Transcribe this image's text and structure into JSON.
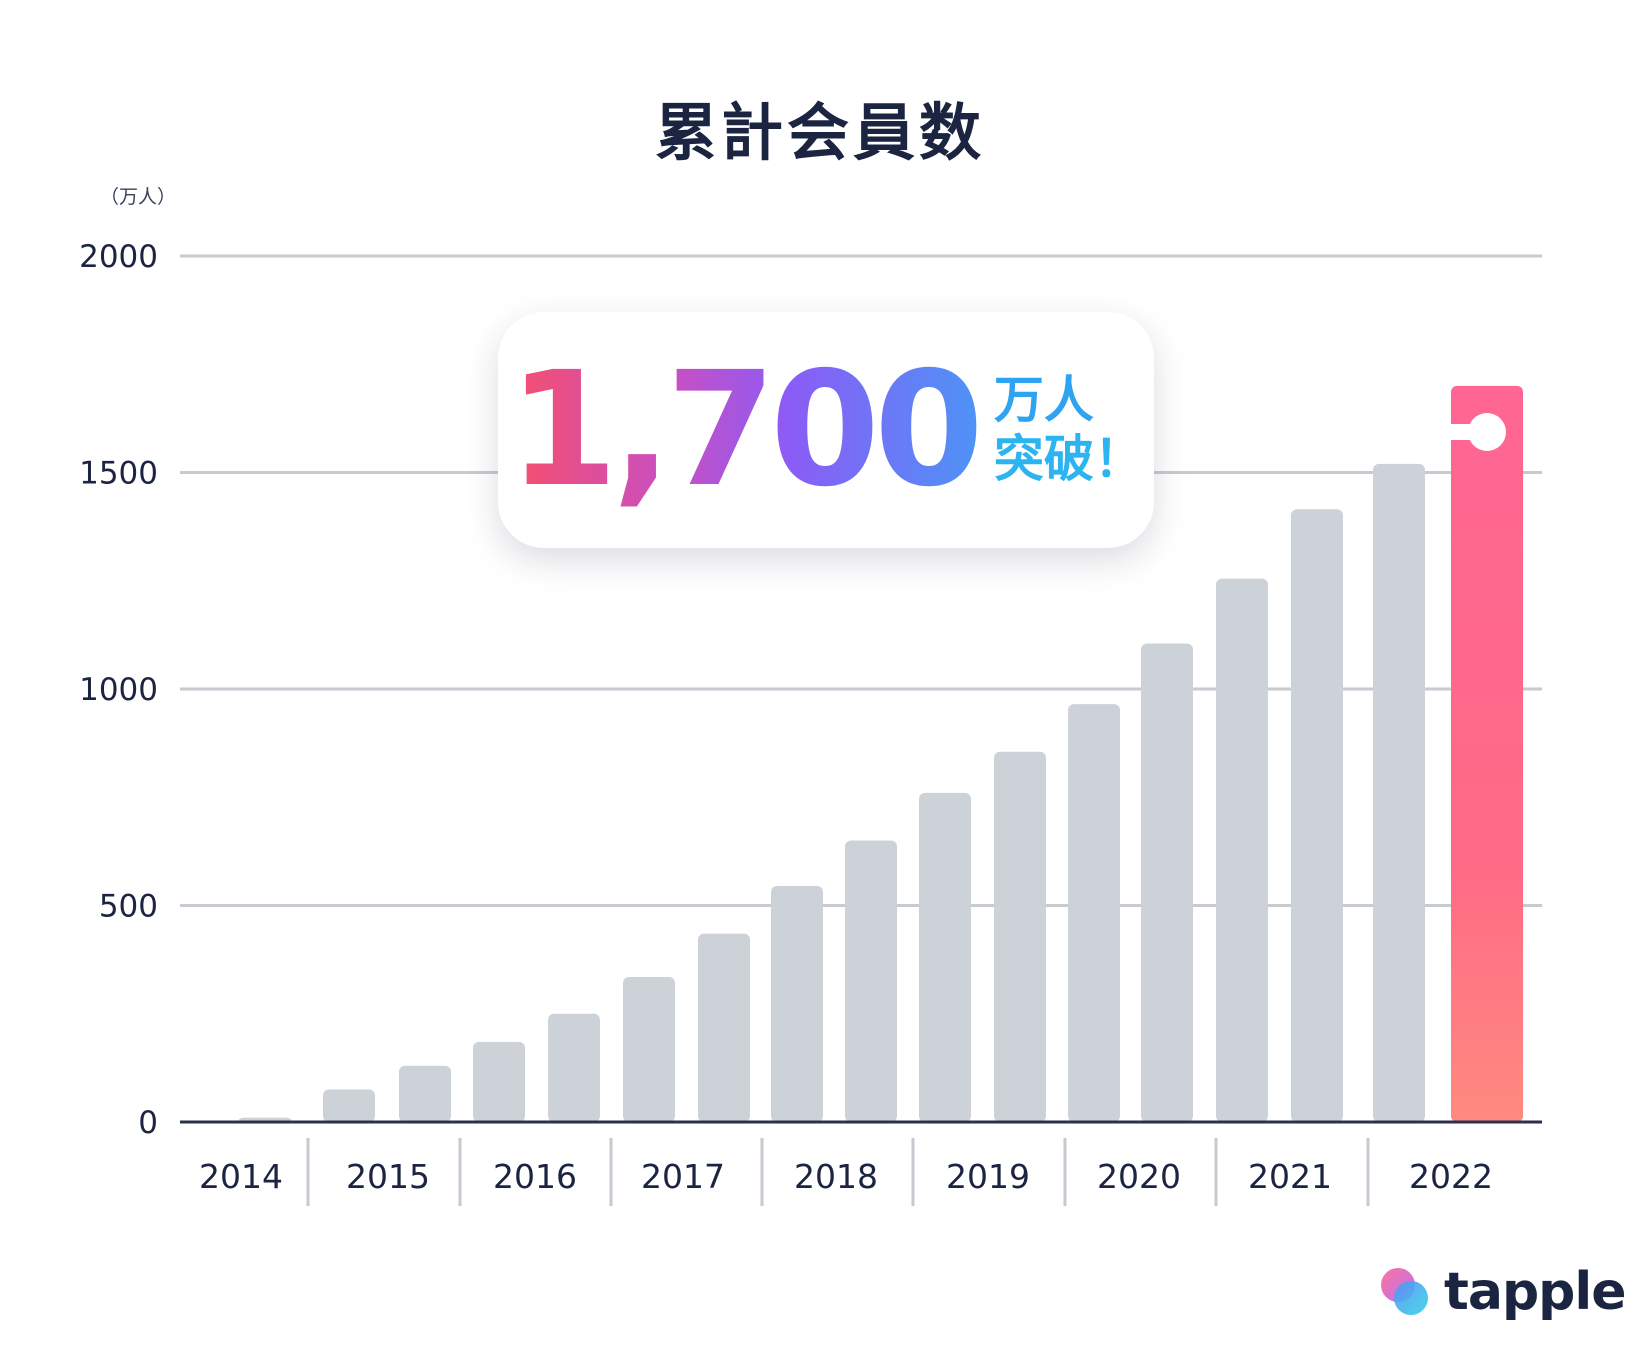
{
  "title": "累計会員数",
  "unit_label": "（万人）",
  "callout": {
    "number": "1,700",
    "line1": "万人",
    "line2": "突破！"
  },
  "brand": {
    "name": "tapple"
  },
  "colors": {
    "bar": "#cdd2d9",
    "highlight_bar_top": "#ff6693",
    "highlight_bar_bottom": "#ff8a7f",
    "grid": "#c7cad0",
    "axis": "#2a3148",
    "text": "#1b2440",
    "callout_accent": "#2ea3f2"
  },
  "chart_data": {
    "type": "bar",
    "title": "累計会員数",
    "ylabel": "（万人）",
    "ylim": [
      0,
      2000
    ],
    "yticks": [
      0,
      500,
      1000,
      1500,
      2000
    ],
    "year_labels": [
      "2014",
      "2015",
      "2016",
      "2017",
      "2018",
      "2019",
      "2020",
      "2021",
      "2022"
    ],
    "values": [
      10,
      75,
      130,
      185,
      250,
      335,
      435,
      545,
      650,
      760,
      855,
      965,
      1105,
      1255,
      1415,
      1520,
      1700
    ],
    "highlight_index": 16,
    "grid": true
  }
}
